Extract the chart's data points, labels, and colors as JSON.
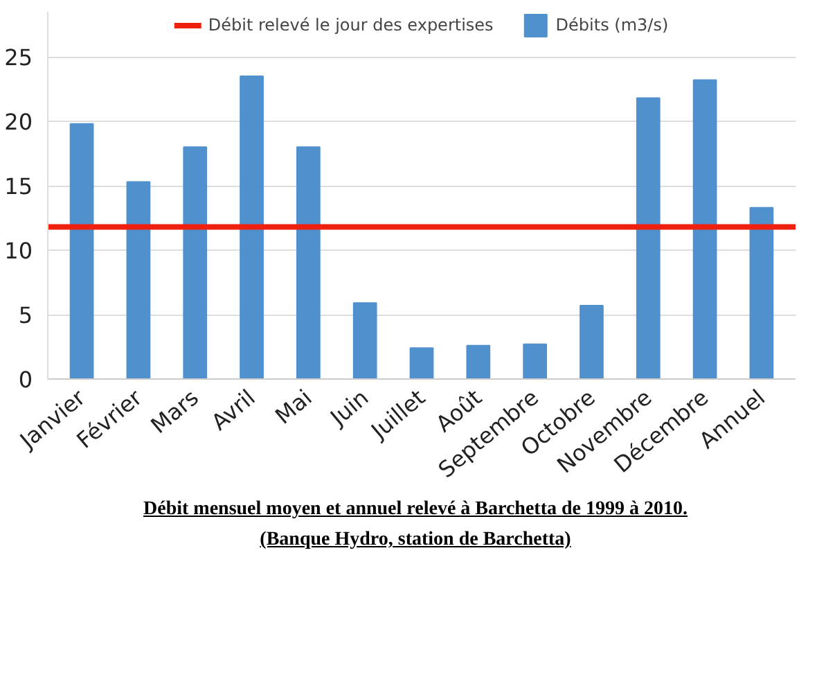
{
  "chart_data": {
    "type": "bar",
    "categories": [
      "Janvier",
      "Février",
      "Mars",
      "Avril",
      "Mai",
      "Juin",
      "Juillet",
      "Août",
      "Septembre",
      "Octobre",
      "Novembre",
      "Décembre",
      "Annuel"
    ],
    "series": [
      {
        "name": "Débits (m3/s)",
        "color": "#4f90cd",
        "values": [
          19.8,
          15.3,
          18.0,
          23.5,
          18.0,
          5.9,
          2.4,
          2.6,
          2.7,
          5.7,
          21.8,
          23.2,
          13.3
        ]
      }
    ],
    "ylim": [
      0,
      28.5
    ],
    "yticks": [
      0,
      5,
      10,
      15,
      20,
      25
    ],
    "grid": "y",
    "legend": "top",
    "ref_lines": [
      {
        "axis": "y",
        "value": 11.8,
        "label": "Débit relevé le jour des expertises",
        "color": "#f0200f"
      }
    ],
    "annotations": [
      "Débit mensuel moyen et annuel relevé à Barchetta de 1999 à 2010.",
      "(Banque Hydro, station de Barchetta)"
    ]
  }
}
